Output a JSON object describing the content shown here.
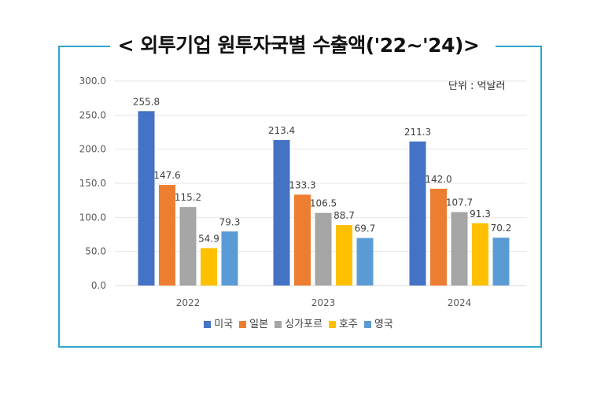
{
  "title": "< 외투기업 원투자국별 수출액('22~'24)>",
  "unit_label": "단위 : 억달러",
  "chart_data": {
    "type": "bar",
    "title": "< 외투기업 원투자국별 수출액('22~'24)>",
    "categories": [
      "2022",
      "2023",
      "2024"
    ],
    "series": [
      {
        "name": "미국",
        "color": "#4472c4",
        "values": [
          255.8,
          213.4,
          211.3
        ],
        "labels": [
          "255.8",
          "213.4",
          "211.3"
        ]
      },
      {
        "name": "일본",
        "color": "#ed7d31",
        "values": [
          147.6,
          133.3,
          142.0
        ],
        "labels": [
          "147.6",
          "133.3",
          "142.0"
        ]
      },
      {
        "name": "싱가포르",
        "color": "#a5a5a5",
        "values": [
          115.2,
          106.5,
          107.7
        ],
        "labels": [
          "115.2",
          "106.5",
          "107.7"
        ]
      },
      {
        "name": "호주",
        "color": "#ffc000",
        "values": [
          54.9,
          88.7,
          91.3
        ],
        "labels": [
          "54.9",
          "88.7",
          "91.3"
        ]
      },
      {
        "name": "영국",
        "color": "#5b9bd5",
        "values": [
          79.3,
          69.7,
          70.2
        ],
        "labels": [
          "79.3",
          "69.7",
          "70.2"
        ]
      }
    ],
    "yticks": [
      "0.0",
      "50.0",
      "100.0",
      "150.0",
      "200.0",
      "250.0",
      "300.0"
    ],
    "ylim": [
      0,
      300
    ],
    "grid": true,
    "legend": "bottom"
  }
}
